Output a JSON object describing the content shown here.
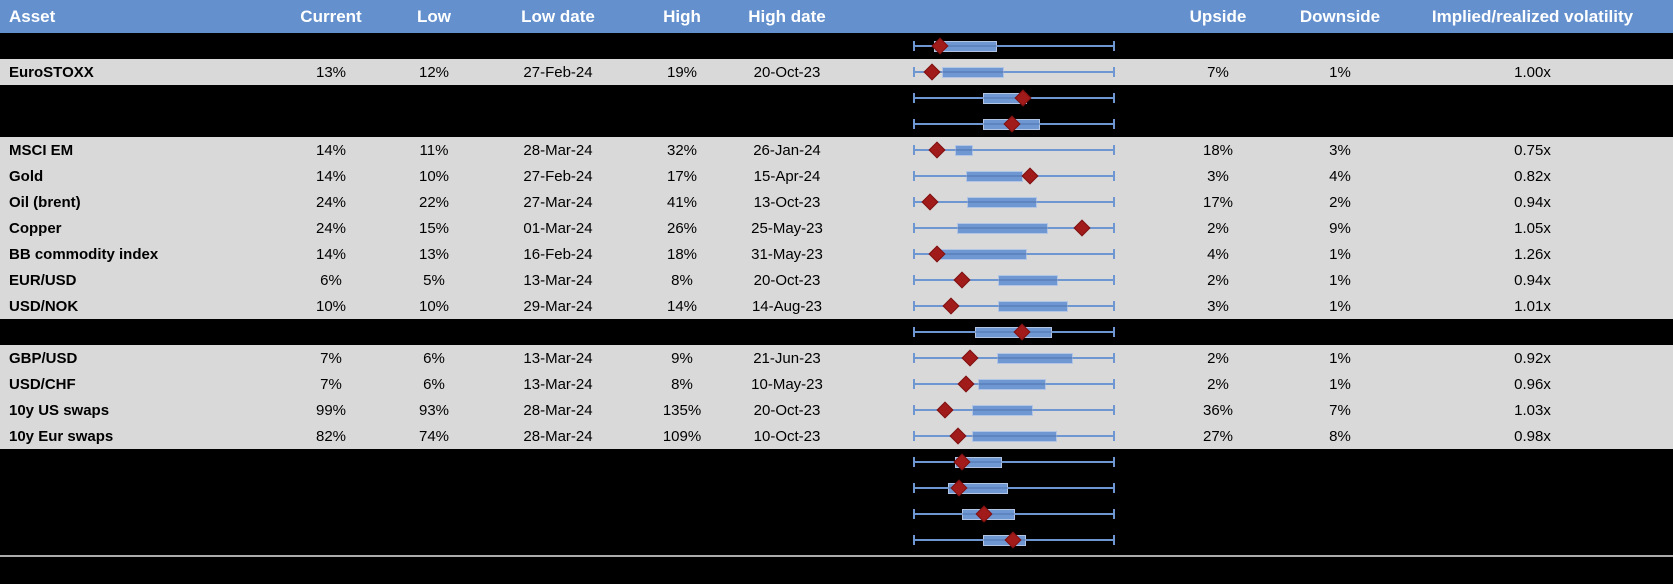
{
  "colors": {
    "header_bg": "#6491CE",
    "header_text": "#FFFFFF",
    "text": "#000000",
    "row_bg": "#D9D9D9",
    "spacer_bg": "#000000",
    "whisker": "#6E96D0",
    "box_fill": "#6F97D1",
    "box_border": "#B3C5E4",
    "marker": "#A11B1B",
    "marker_border": "#7E1111",
    "divider": "#ABABAB"
  },
  "header": {
    "columns": [
      {
        "id": "asset",
        "label": "Asset"
      },
      {
        "id": "current",
        "label": "Current"
      },
      {
        "id": "low",
        "label": "Low"
      },
      {
        "id": "low-date",
        "label": "Low date"
      },
      {
        "id": "high",
        "label": "High"
      },
      {
        "id": "high-date",
        "label": "High date"
      },
      {
        "id": "range-plot",
        "label": ""
      },
      {
        "id": "upside",
        "label": "Upside"
      },
      {
        "id": "downside",
        "label": "Downside"
      },
      {
        "id": "implied-realized-volatility",
        "label": "Implied/realized volatility"
      }
    ]
  },
  "chart_data": {
    "type": "table",
    "subtype": "box-whisker per row",
    "note": "Each row shows a normalized min-max whisker (0 to 1 spans the full range), a blue interquartile box (box_lo to box_hi) and a red diamond marking the current level (marker).",
    "x_range_normalized": [
      0,
      1
    ],
    "rows": [
      {
        "kind": "chart",
        "asset": "",
        "current": "",
        "low": "",
        "low_date": "",
        "high": "",
        "high_date": "",
        "upside": "",
        "downside": "",
        "impl_real": "",
        "box_lo": 0.104,
        "box_hi": 0.416,
        "marker": 0.134
      },
      {
        "kind": "data",
        "asset": "EuroSTOXX",
        "current": "13%",
        "low": "12%",
        "low_date": "27-Feb-24",
        "high": "19%",
        "high_date": "20-Oct-23",
        "upside": "7%",
        "downside": "1%",
        "impl_real": "1.00x",
        "box_lo": 0.144,
        "box_hi": 0.45,
        "marker": 0.094
      },
      {
        "kind": "chart",
        "asset": "",
        "current": "",
        "low": "",
        "low_date": "",
        "high": "",
        "high_date": "",
        "upside": "",
        "downside": "",
        "impl_real": "",
        "box_lo": 0.347,
        "box_hi": 0.564,
        "marker": 0.543
      },
      {
        "kind": "chart",
        "asset": "",
        "current": "",
        "low": "",
        "low_date": "",
        "high": "",
        "high_date": "",
        "upside": "",
        "downside": "",
        "impl_real": "",
        "box_lo": 0.347,
        "box_hi": 0.629,
        "marker": 0.49
      },
      {
        "kind": "data",
        "asset": "MSCI EM",
        "current": "14%",
        "low": "11%",
        "low_date": "28-Mar-24",
        "high": "32%",
        "high_date": "26-Jan-24",
        "upside": "18%",
        "downside": "3%",
        "impl_real": "0.75x",
        "box_lo": 0.208,
        "box_hi": 0.296,
        "marker": 0.117
      },
      {
        "kind": "data",
        "asset": "Gold",
        "current": "14%",
        "low": "10%",
        "low_date": "27-Feb-24",
        "high": "17%",
        "high_date": "15-Apr-24",
        "upside": "3%",
        "downside": "4%",
        "impl_real": "0.82x",
        "box_lo": 0.262,
        "box_hi": 0.545,
        "marker": 0.579
      },
      {
        "kind": "data",
        "asset": "Oil (brent)",
        "current": "24%",
        "low": "22%",
        "low_date": "27-Mar-24",
        "high": "41%",
        "high_date": "13-Oct-23",
        "upside": "17%",
        "downside": "2%",
        "impl_real": "0.94x",
        "box_lo": 0.266,
        "box_hi": 0.612,
        "marker": 0.084
      },
      {
        "kind": "data",
        "asset": "Copper",
        "current": "24%",
        "low": "15%",
        "low_date": "01-Mar-24",
        "high": "26%",
        "high_date": "25-May-23",
        "upside": "2%",
        "downside": "9%",
        "impl_real": "1.05x",
        "box_lo": 0.219,
        "box_hi": 0.67,
        "marker": 0.837
      },
      {
        "kind": "data",
        "asset": "BB commodity index",
        "current": "14%",
        "low": "13%",
        "low_date": "16-Feb-24",
        "high": "18%",
        "high_date": "31-May-23",
        "upside": "4%",
        "downside": "1%",
        "impl_real": "1.26x",
        "box_lo": 0.125,
        "box_hi": 0.564,
        "marker": 0.117
      },
      {
        "kind": "data",
        "asset": "EUR/USD",
        "current": "6%",
        "low": "5%",
        "low_date": "13-Mar-24",
        "high": "8%",
        "high_date": "20-Oct-23",
        "upside": "2%",
        "downside": "1%",
        "impl_real": "0.94x",
        "box_lo": 0.422,
        "box_hi": 0.719,
        "marker": 0.241
      },
      {
        "kind": "data",
        "asset": "USD/NOK",
        "current": "10%",
        "low": "10%",
        "low_date": "29-Mar-24",
        "high": "14%",
        "high_date": "14-Aug-23",
        "upside": "3%",
        "downside": "1%",
        "impl_real": "1.01x",
        "box_lo": 0.419,
        "box_hi": 0.769,
        "marker": 0.188
      },
      {
        "kind": "chart",
        "asset": "",
        "current": "",
        "low": "",
        "low_date": "",
        "high": "",
        "high_date": "",
        "upside": "",
        "downside": "",
        "impl_real": "",
        "box_lo": 0.307,
        "box_hi": 0.687,
        "marker": 0.538
      },
      {
        "kind": "data",
        "asset": "GBP/USD",
        "current": "7%",
        "low": "6%",
        "low_date": "13-Mar-24",
        "high": "9%",
        "high_date": "21-Jun-23",
        "upside": "2%",
        "downside": "1%",
        "impl_real": "0.92x",
        "box_lo": 0.414,
        "box_hi": 0.794,
        "marker": 0.282
      },
      {
        "kind": "data",
        "asset": "USD/CHF",
        "current": "7%",
        "low": "6%",
        "low_date": "13-Mar-24",
        "high": "8%",
        "high_date": "10-May-23",
        "upside": "2%",
        "downside": "1%",
        "impl_real": "0.96x",
        "box_lo": 0.32,
        "box_hi": 0.657,
        "marker": 0.262
      },
      {
        "kind": "data",
        "asset": "10y US swaps",
        "current": "99%",
        "low": "93%",
        "low_date": "28-Mar-24",
        "high": "135%",
        "high_date": "20-Oct-23",
        "upside": "36%",
        "downside": "7%",
        "impl_real": "1.03x",
        "box_lo": 0.291,
        "box_hi": 0.593,
        "marker": 0.158
      },
      {
        "kind": "data",
        "asset": "10y Eur swaps",
        "current": "82%",
        "low": "74%",
        "low_date": "28-Mar-24",
        "high": "109%",
        "high_date": "10-Oct-23",
        "upside": "27%",
        "downside": "8%",
        "impl_real": "0.98x",
        "box_lo": 0.291,
        "box_hi": 0.711,
        "marker": 0.221
      },
      {
        "kind": "chart",
        "asset": "",
        "current": "",
        "low": "",
        "low_date": "",
        "high": "",
        "high_date": "",
        "upside": "",
        "downside": "",
        "impl_real": "",
        "box_lo": 0.208,
        "box_hi": 0.439,
        "marker": 0.241
      },
      {
        "kind": "chart",
        "asset": "",
        "current": "",
        "low": "",
        "low_date": "",
        "high": "",
        "high_date": "",
        "upside": "",
        "downside": "",
        "impl_real": "",
        "box_lo": 0.175,
        "box_hi": 0.469,
        "marker": 0.229
      },
      {
        "kind": "chart",
        "asset": "",
        "current": "",
        "low": "",
        "low_date": "",
        "high": "",
        "high_date": "",
        "upside": "",
        "downside": "",
        "impl_real": "",
        "box_lo": 0.244,
        "box_hi": 0.505,
        "marker": 0.351
      },
      {
        "kind": "chart",
        "asset": "",
        "current": "",
        "low": "",
        "low_date": "",
        "high": "",
        "high_date": "",
        "upside": "",
        "downside": "",
        "impl_real": "",
        "box_lo": 0.345,
        "box_hi": 0.559,
        "marker": 0.497
      }
    ]
  }
}
